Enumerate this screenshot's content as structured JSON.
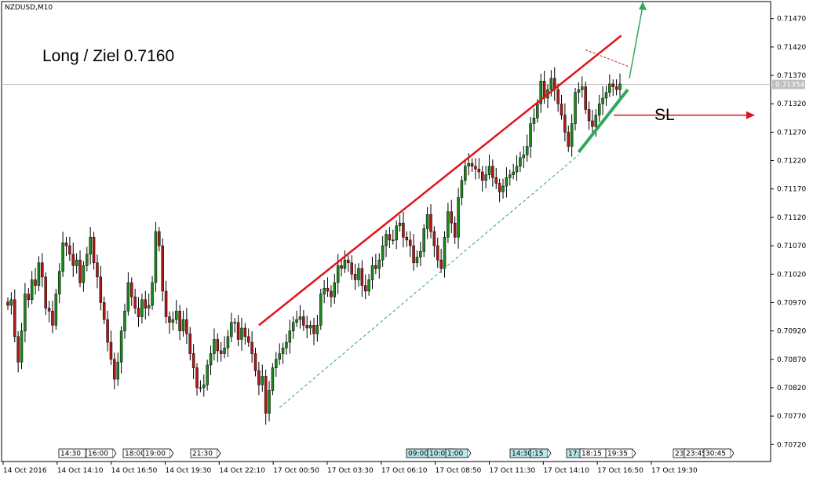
{
  "chart_data": {
    "type": "candlestick",
    "symbol_label": "NZDUSD,M10",
    "ylim": [
      0.7069,
      0.715
    ],
    "y_ticks": [
      "0.71470",
      "0.71420",
      "0.71370",
      "0.71320",
      "0.71270",
      "0.71220",
      "0.71170",
      "0.71120",
      "0.71070",
      "0.71020",
      "0.70970",
      "0.70920",
      "0.70870",
      "0.70820",
      "0.70770",
      "0.70720"
    ],
    "current_price": "0.71354",
    "x_labels": [
      "14 Oct 2016",
      "14 Oct 14:10",
      "14 Oct 16:50",
      "14 Oct 19:30",
      "14 Oct 22:10",
      "17 Oct 00:50",
      "17 Oct 03:30",
      "17 Oct 06:10",
      "17 Oct 08:50",
      "17 Oct 11:30",
      "17 Oct 14:10",
      "17 Oct 16:50",
      "17 Oct 19:30"
    ],
    "time_markers": [
      {
        "label": "14:30",
        "highlight": false
      },
      {
        "label": "16:00",
        "highlight": false
      },
      {
        "label": "18:00",
        "highlight": false
      },
      {
        "label": "19:00",
        "highlight": false
      },
      {
        "label": "21:30",
        "highlight": false
      },
      {
        "label": "09:00",
        "highlight": true
      },
      {
        "label": "10:00",
        "highlight": true
      },
      {
        "label": "1:00",
        "highlight": true
      },
      {
        "label": "14:30",
        "highlight": true
      },
      {
        "label": ":15",
        "highlight": true
      },
      {
        "label": "17:",
        "highlight": true
      },
      {
        "label": "18:15",
        "highlight": false
      },
      {
        "label": "19:35",
        "highlight": false
      },
      {
        "label": "23",
        "highlight": false
      },
      {
        "label": "23:45",
        "highlight": false
      },
      {
        "label": "30:45",
        "highlight": false
      }
    ],
    "closes": [
      0.70965,
      0.70975,
      0.7091,
      0.70865,
      0.7092,
      0.70985,
      0.70975,
      0.7101,
      0.71,
      0.7104,
      0.71015,
      0.7096,
      0.70955,
      0.7093,
      0.70985,
      0.71025,
      0.71075,
      0.7107,
      0.71055,
      0.71035,
      0.71045,
      0.71005,
      0.71035,
      0.71055,
      0.71085,
      0.7104,
      0.71015,
      0.7097,
      0.7094,
      0.709,
      0.7087,
      0.70835,
      0.70865,
      0.7092,
      0.70955,
      0.71005,
      0.7098,
      0.7096,
      0.70945,
      0.70975,
      0.7096,
      0.70965,
      0.71005,
      0.71095,
      0.7107,
      0.7099,
      0.70945,
      0.70935,
      0.7094,
      0.70955,
      0.7092,
      0.7094,
      0.70915,
      0.7088,
      0.70855,
      0.7082,
      0.7082,
      0.70825,
      0.7086,
      0.7088,
      0.70905,
      0.70885,
      0.7088,
      0.7089,
      0.7091,
      0.70935,
      0.70935,
      0.70905,
      0.70925,
      0.7091,
      0.709,
      0.7088,
      0.7085,
      0.70825,
      0.7084,
      0.70775,
      0.70815,
      0.70855,
      0.7087,
      0.7088,
      0.7089,
      0.709,
      0.7092,
      0.70935,
      0.7094,
      0.70945,
      0.7093,
      0.70925,
      0.7093,
      0.70915,
      0.7093,
      0.70985,
      0.70995,
      0.7099,
      0.7098,
      0.71005,
      0.71035,
      0.7103,
      0.71045,
      0.7104,
      0.7102,
      0.7101,
      0.7103,
      0.71,
      0.7099,
      0.7101,
      0.71035,
      0.7103,
      0.71045,
      0.7107,
      0.7109,
      0.7108,
      0.7108,
      0.71105,
      0.7111,
      0.71085,
      0.7108,
      0.7107,
      0.7104,
      0.7105,
      0.7106,
      0.711,
      0.71125,
      0.71095,
      0.7107,
      0.71045,
      0.7103,
      0.71085,
      0.7113,
      0.7111,
      0.71085,
      0.71155,
      0.71185,
      0.7121,
      0.71215,
      0.7121,
      0.71205,
      0.712,
      0.71185,
      0.71195,
      0.7121,
      0.7119,
      0.7118,
      0.71165,
      0.71175,
      0.7119,
      0.71195,
      0.712,
      0.7121,
      0.71225,
      0.7123,
      0.71245,
      0.71285,
      0.71295,
      0.7132,
      0.7136,
      0.7133,
      0.71345,
      0.71365,
      0.71345,
      0.7132,
      0.713,
      0.7127,
      0.71245,
      0.71285,
      0.7134,
      0.71345,
      0.7135,
      0.7131,
      0.7129,
      0.7128,
      0.713,
      0.7132,
      0.7133,
      0.7134,
      0.71355,
      0.7135,
      0.71345,
      0.71355
    ]
  },
  "annotations": {
    "trade_text": "Long / Ziel 0.7160",
    "sl_text": "SL"
  },
  "colors": {
    "bull": "#1a8a1a",
    "bear": "#b01818",
    "wick": "#000000",
    "trend_red": "#e0151a",
    "support_green": "#2daa5a",
    "grid": "#cccccc",
    "marker_highlight": "#b8e8ea"
  }
}
